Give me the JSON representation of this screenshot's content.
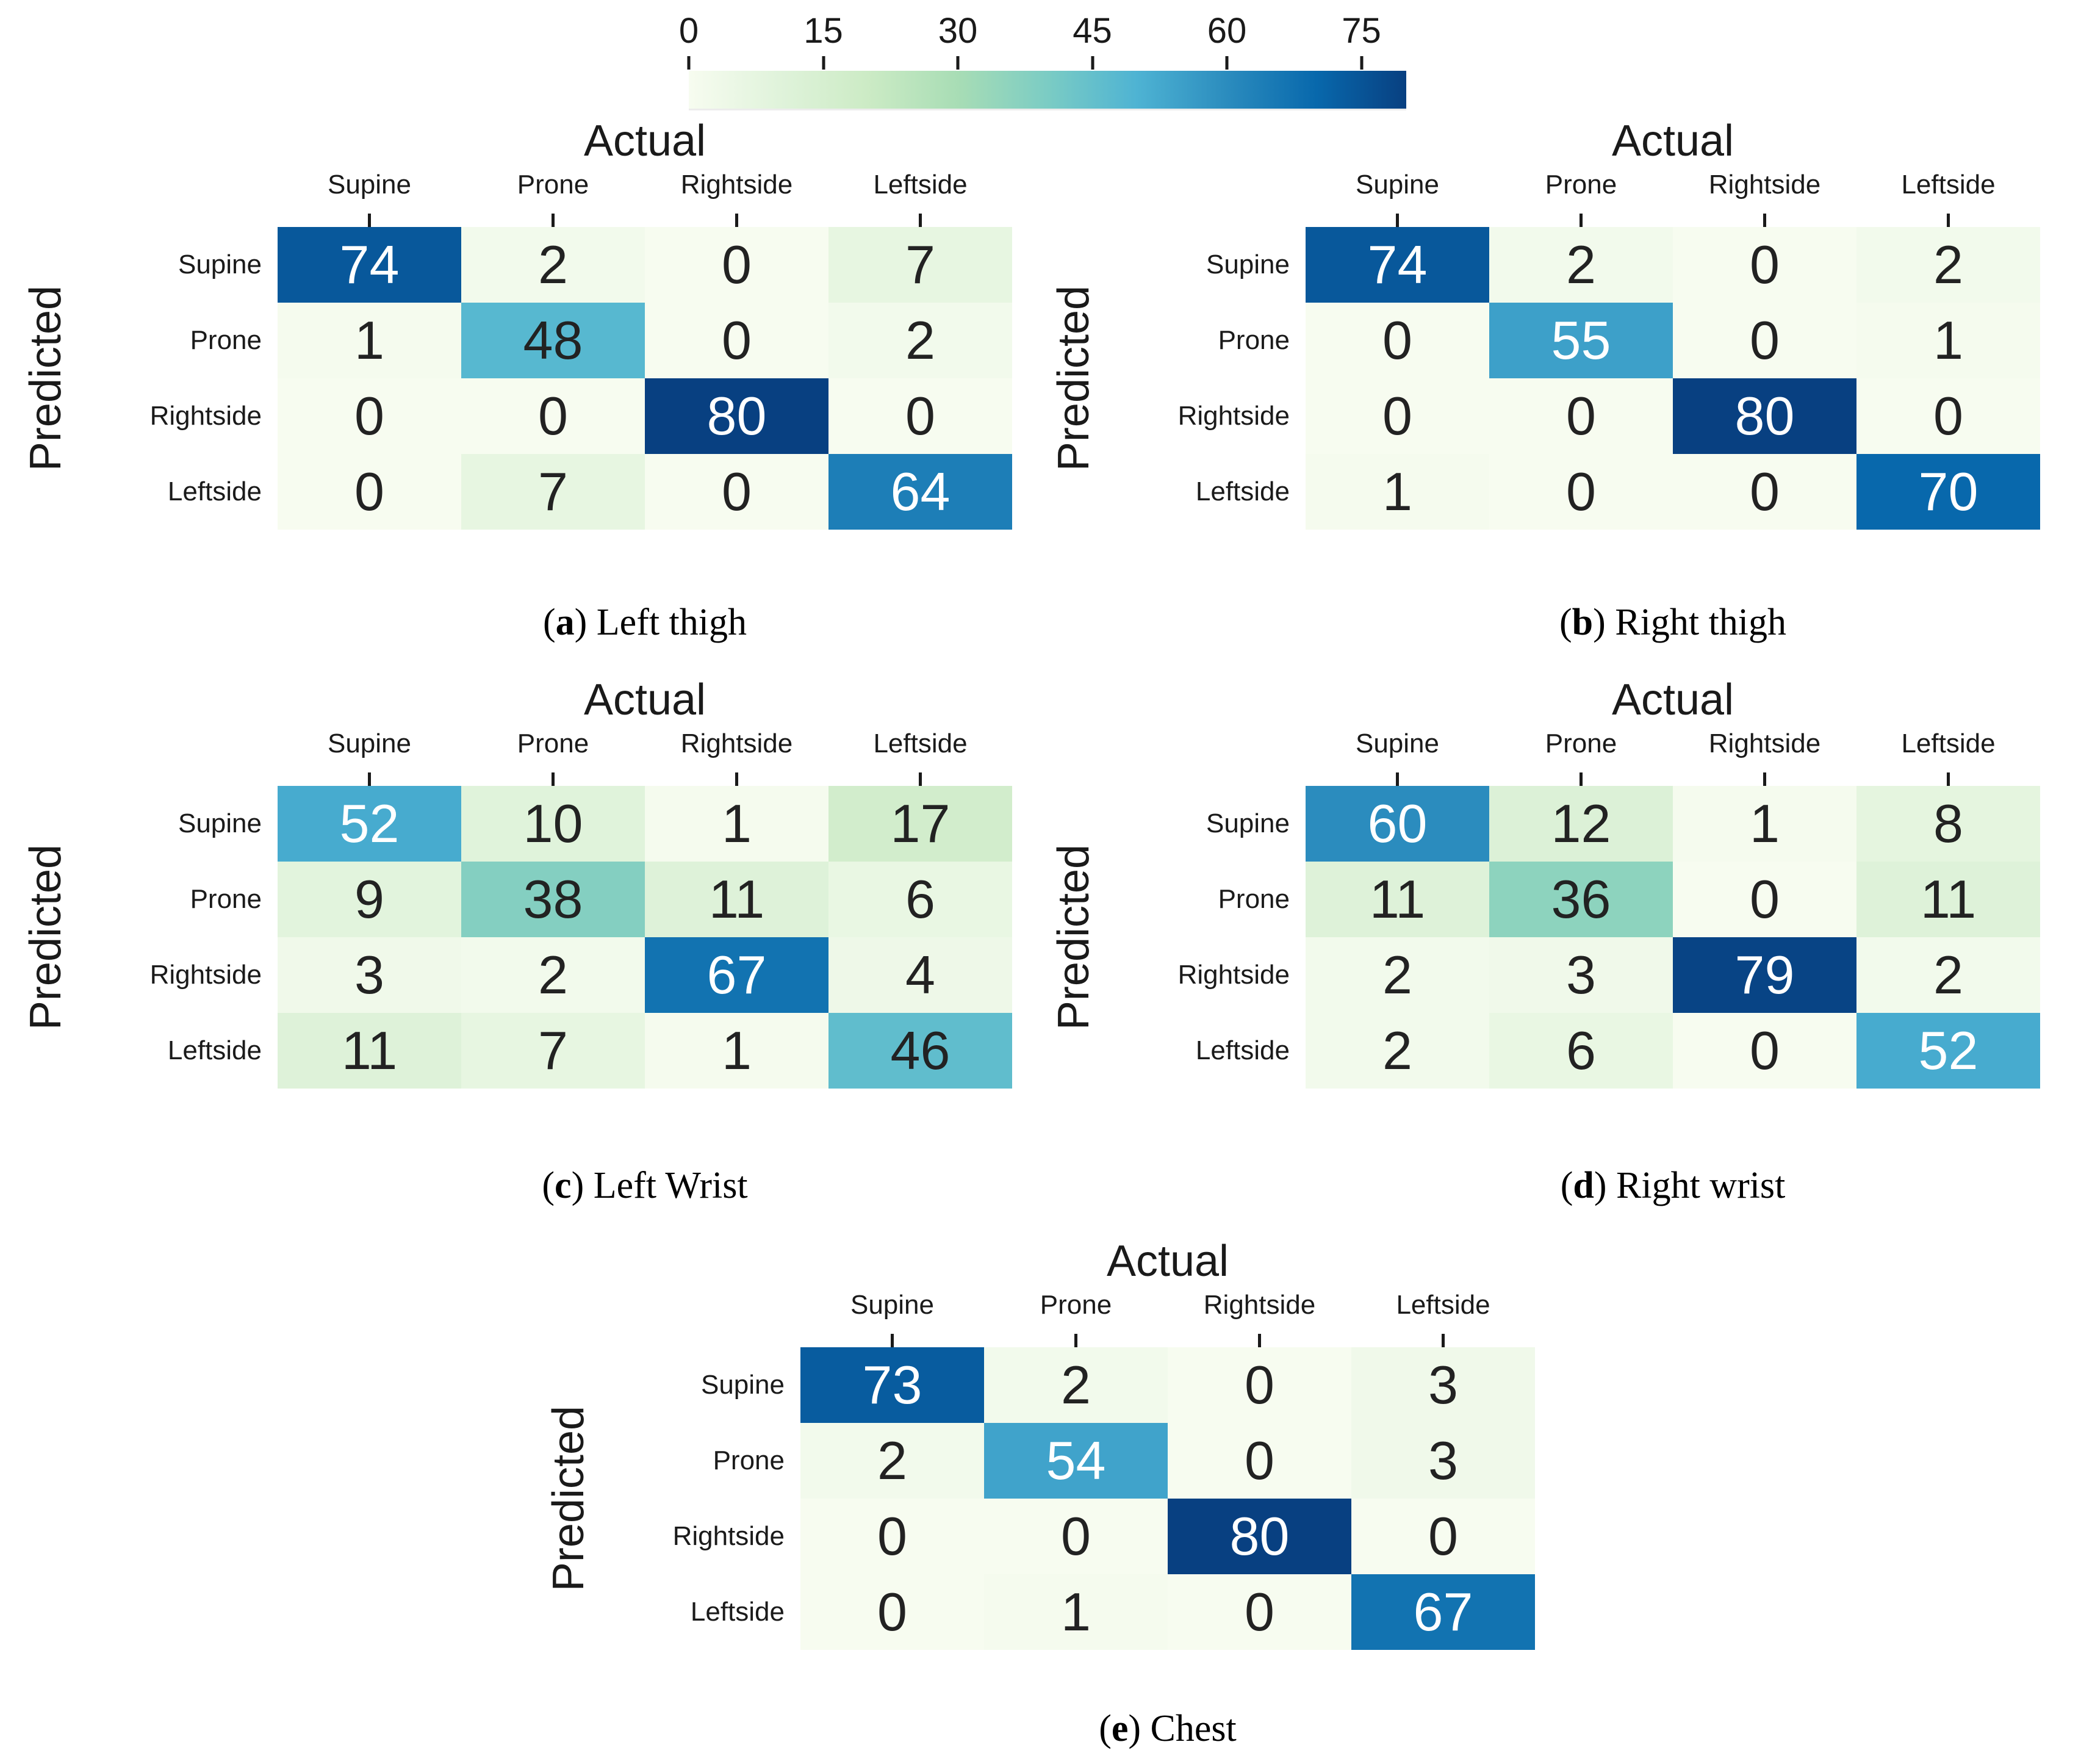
{
  "colorbar": {
    "tick_labels": [
      "0",
      "15",
      "30",
      "45",
      "60",
      "75"
    ],
    "tick_values": [
      0,
      15,
      30,
      45,
      60,
      75
    ],
    "vmin": 0,
    "vmax": 80
  },
  "colormap": {
    "name": "GnBu",
    "anchors": [
      "#f7fcf0",
      "#e0f3db",
      "#ccebc5",
      "#a8ddb5",
      "#7bccc4",
      "#4eb3d3",
      "#2b8cbe",
      "#0868ac",
      "#084081"
    ]
  },
  "text_style": {
    "dark_text": "#222222",
    "light_text": "#ffffff"
  },
  "chart_data": [
    {
      "type": "heatmap",
      "caption_letter": "a",
      "caption_label": "Left thigh",
      "xlabel": "Actual",
      "ylabel": "Predicted",
      "x_categories": [
        "Supine",
        "Prone",
        "Rightside",
        "Leftside"
      ],
      "y_categories": [
        "Supine",
        "Prone",
        "Rightside",
        "Leftside"
      ],
      "values": [
        [
          74,
          2,
          0,
          7
        ],
        [
          1,
          48,
          0,
          2
        ],
        [
          0,
          0,
          80,
          0
        ],
        [
          0,
          7,
          0,
          64
        ]
      ],
      "vmin": 0,
      "vmax": 80
    },
    {
      "type": "heatmap",
      "caption_letter": "b",
      "caption_label": "Right thigh",
      "xlabel": "Actual",
      "ylabel": "Predicted",
      "x_categories": [
        "Supine",
        "Prone",
        "Rightside",
        "Leftside"
      ],
      "y_categories": [
        "Supine",
        "Prone",
        "Rightside",
        "Leftside"
      ],
      "values": [
        [
          74,
          2,
          0,
          2
        ],
        [
          0,
          55,
          0,
          1
        ],
        [
          0,
          0,
          80,
          0
        ],
        [
          1,
          0,
          0,
          70
        ]
      ],
      "vmin": 0,
      "vmax": 80
    },
    {
      "type": "heatmap",
      "caption_letter": "c",
      "caption_label": "Left Wrist",
      "xlabel": "Actual",
      "ylabel": "Predicted",
      "x_categories": [
        "Supine",
        "Prone",
        "Rightside",
        "Leftside"
      ],
      "y_categories": [
        "Supine",
        "Prone",
        "Rightside",
        "Leftside"
      ],
      "values": [
        [
          52,
          10,
          1,
          17
        ],
        [
          9,
          38,
          11,
          6
        ],
        [
          3,
          2,
          67,
          4
        ],
        [
          11,
          7,
          1,
          46
        ]
      ],
      "vmin": 0,
      "vmax": 80
    },
    {
      "type": "heatmap",
      "caption_letter": "d",
      "caption_label": "Right wrist",
      "xlabel": "Actual",
      "ylabel": "Predicted",
      "x_categories": [
        "Supine",
        "Prone",
        "Rightside",
        "Leftside"
      ],
      "y_categories": [
        "Supine",
        "Prone",
        "Rightside",
        "Leftside"
      ],
      "values": [
        [
          60,
          12,
          1,
          8
        ],
        [
          11,
          36,
          0,
          11
        ],
        [
          2,
          3,
          79,
          2
        ],
        [
          2,
          6,
          0,
          52
        ]
      ],
      "vmin": 0,
      "vmax": 80
    },
    {
      "type": "heatmap",
      "caption_letter": "e",
      "caption_label": "Chest",
      "xlabel": "Actual",
      "ylabel": "Predicted",
      "x_categories": [
        "Supine",
        "Prone",
        "Rightside",
        "Leftside"
      ],
      "y_categories": [
        "Supine",
        "Prone",
        "Rightside",
        "Leftside"
      ],
      "values": [
        [
          73,
          2,
          0,
          3
        ],
        [
          2,
          54,
          0,
          3
        ],
        [
          0,
          0,
          80,
          0
        ],
        [
          0,
          1,
          0,
          67
        ]
      ],
      "vmin": 0,
      "vmax": 80
    }
  ]
}
